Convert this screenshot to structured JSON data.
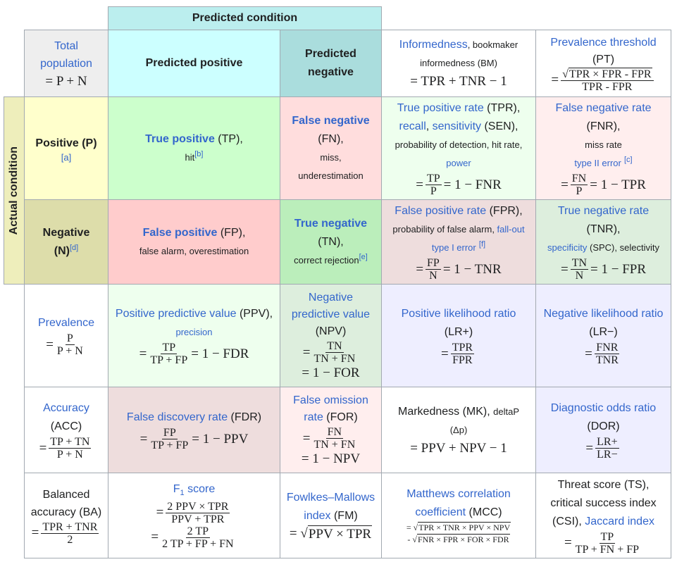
{
  "header": {
    "predicted_condition": "Predicted condition",
    "actual_condition": "Actual condition"
  },
  "total": {
    "label1": "Total",
    "label2": "population",
    "formula": "= P + N"
  },
  "pred_pos": "Predicted positive",
  "pred_neg1": "Predicted",
  "pred_neg2": "negative",
  "bm": {
    "name": "Informedness",
    "rest1": ", bookmaker",
    "rest2": "informedness (BM)",
    "formula": "= TPR + TNR − 1"
  },
  "pt": {
    "name": "Prevalence threshold",
    "abbr": "(PT)",
    "eq": "=",
    "num": "TPR × FPR - FPR",
    "den": "TPR - FPR"
  },
  "pos": {
    "label": "Positive (P)",
    "note": "[a]"
  },
  "tp": {
    "name": "True positive",
    "abbr": " (TP),",
    "alt": "hit",
    "note": "[b]"
  },
  "fn": {
    "name": "False negative",
    "abbr": "(FN),",
    "alt1": "miss,",
    "alt2": "underestimation"
  },
  "tpr": {
    "name": "True positive rate",
    "abbr": " (TPR),",
    "l2a": "recall",
    "l2b": ", ",
    "l2c": "sensitivity",
    "l2d": " (SEN),",
    "l3": "probability of detection, hit rate,",
    "l4": "power",
    "eq": "=",
    "num": "TP",
    "den": "P",
    "rest": "= 1 − FNR"
  },
  "fnr": {
    "name": "False negative rate",
    "abbr": "(FNR),",
    "l3": "miss rate",
    "l4": "type II error",
    "note": "[c]",
    "eq": "=",
    "num": "FN",
    "den": "P",
    "rest": "= 1 − TPR"
  },
  "neg": {
    "label1": "Negative",
    "label2": "(N)",
    "note": "[d]"
  },
  "fp": {
    "name": "False positive",
    "abbr": " (FP),",
    "alt": "false alarm, overestimation"
  },
  "tn": {
    "name": "True negative",
    "abbr": "(TN),",
    "alt": "correct rejection",
    "note": "[e]"
  },
  "fpr": {
    "name": "False positive rate",
    "abbr": " (FPR),",
    "l2a": "probability of false alarm, ",
    "l2b": "fall-out",
    "l3": "type I error",
    "note": "[f]",
    "eq": "=",
    "num": "FP",
    "den": "N",
    "rest": "= 1 − TNR"
  },
  "tnr": {
    "name": "True negative rate",
    "abbr": "(TNR),",
    "l3a": "specificity",
    "l3b": " (SPC), selectivity",
    "eq": "=",
    "num": "TN",
    "den": "N",
    "rest": "= 1 − FPR"
  },
  "prev": {
    "name": "Prevalence",
    "eq": "=",
    "num": "P",
    "den": "P + N"
  },
  "ppv": {
    "name": "Positive predictive value",
    "abbr": " (PPV),",
    "l2": "precision",
    "eq": "=",
    "num": "TP",
    "den": "TP + FP",
    "rest": "= 1 − FDR"
  },
  "npv": {
    "l1": "Negative",
    "l2": "predictive value",
    "abbr": "(NPV)",
    "eq": "=",
    "num": "TN",
    "den": "TN + FN",
    "rest": "= 1 − FOR"
  },
  "lrp": {
    "name": "Positive likelihood ratio",
    "abbr": "(LR+)",
    "eq": "=",
    "num": "TPR",
    "den": "FPR"
  },
  "lrn": {
    "name": "Negative likelihood ratio",
    "abbr": "(LR−)",
    "eq": "=",
    "num": "FNR",
    "den": "TNR"
  },
  "acc": {
    "name": "Accuracy",
    "abbr": "(ACC)",
    "eq": "=",
    "num": "TP + TN",
    "den": "P + N"
  },
  "fdr": {
    "name": "False discovery rate",
    "abbr": " (FDR)",
    "eq": "=",
    "num": "FP",
    "den": "TP + FP",
    "rest": "= 1 − PPV"
  },
  "for": {
    "l1": "False omission",
    "l2": "rate",
    "abbr": " (FOR)",
    "eq": "=",
    "num": "FN",
    "den": "TN + FN",
    "rest": "= 1 − NPV"
  },
  "mk": {
    "name": "Markedness (MK), ",
    "small": "deltaP",
    "small2": "(Δp)",
    "formula": "= PPV + NPV − 1"
  },
  "dor": {
    "name": "Diagnostic odds ratio",
    "abbr": "(DOR)",
    "eq": "=",
    "num": "LR+",
    "den": "LR−"
  },
  "ba": {
    "l1": "Balanced",
    "l2": "accuracy (BA)",
    "eq": "=",
    "num": "TPR + TNR",
    "den": "2"
  },
  "f1": {
    "name": "F",
    "sub": "1",
    "name2": " score",
    "eq": "=",
    "num": "2 PPV × TPR",
    "den": "PPV + TPR",
    "eq2": "=",
    "num2": "2 TP",
    "den2": "2 TP + FP + FN"
  },
  "fm": {
    "name": "Fowlkes–Mallows",
    "l2": "index",
    "abbr": " (FM)",
    "formula": "= ",
    "sqrt": "PPV × TPR"
  },
  "mcc": {
    "l1": "Matthews correlation",
    "l2": "coefficient",
    "abbr": " (MCC)",
    "eq": "=",
    "top": "TPR × TNR × PPV × NPV",
    "minus": "-",
    "bot": "FNR × FPR × FOR × FDR"
  },
  "ts": {
    "l1": "Threat score (TS),",
    "l2": "critical success index",
    "l3a": "(CSI), ",
    "l3b": "Jaccard index",
    "eq": "=",
    "num": "TP",
    "den": "TP + FN + FP"
  }
}
